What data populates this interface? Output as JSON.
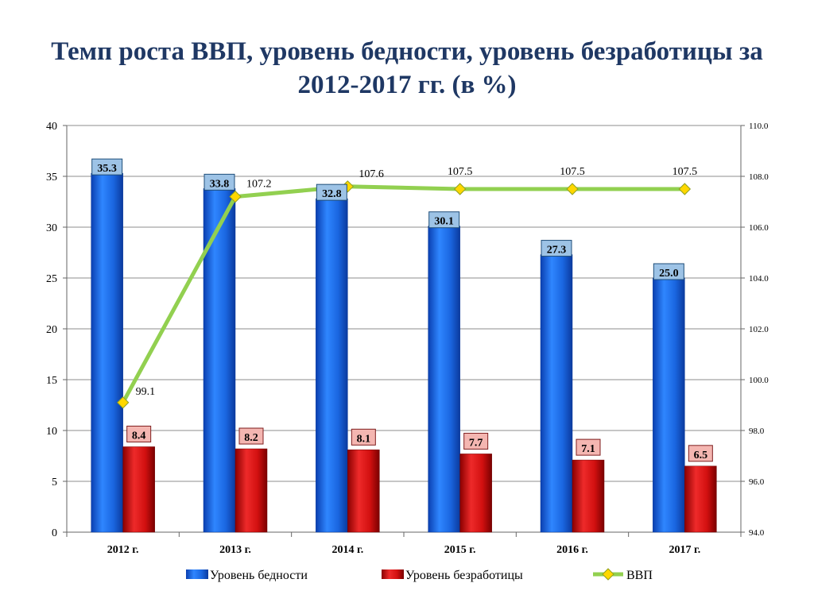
{
  "title": "Темп роста ВВП, уровень бедности, уровень безработицы за 2012-2017 гг. (в %)",
  "chart_data": {
    "type": "bar",
    "categories": [
      "2012 г.",
      "2013 г.",
      "2014 г.",
      "2015 г.",
      "2016 г.",
      "2017 г."
    ],
    "series": [
      {
        "name": "Уровень бедности",
        "kind": "bar",
        "axis": "left",
        "color": "#1f6fe0",
        "values": [
          35.3,
          33.8,
          32.8,
          30.1,
          27.3,
          25.0
        ],
        "labels": [
          "35.3",
          "33.8",
          "32.8",
          "30.1",
          "27.3",
          "25.0"
        ]
      },
      {
        "name": "Уровень безработицы",
        "kind": "bar",
        "axis": "left",
        "color": "#d61414",
        "values": [
          8.4,
          8.2,
          8.1,
          7.7,
          7.1,
          6.5
        ],
        "labels": [
          "8.4",
          "8.2",
          "8.1",
          "7.7",
          "7.1",
          "6.5"
        ]
      },
      {
        "name": "ВВП",
        "kind": "line",
        "axis": "right",
        "color": "#92d050",
        "marker_color": "#ffd700",
        "values": [
          99.1,
          107.2,
          107.6,
          107.5,
          107.5,
          107.5
        ],
        "labels": [
          "99.1",
          "107.2",
          "107.6",
          "107.5",
          "107.5",
          "107.5"
        ]
      }
    ],
    "ylim": [
      0,
      40
    ],
    "yticks": [
      "0",
      "5",
      "10",
      "15",
      "20",
      "25",
      "30",
      "35",
      "40"
    ],
    "y2lim": [
      94,
      110
    ],
    "y2ticks": [
      "94.0",
      "96.0",
      "98.0",
      "100.0",
      "102.0",
      "104.0",
      "106.0",
      "108.0",
      "110.0"
    ],
    "grid": true,
    "legend_position": "bottom"
  }
}
